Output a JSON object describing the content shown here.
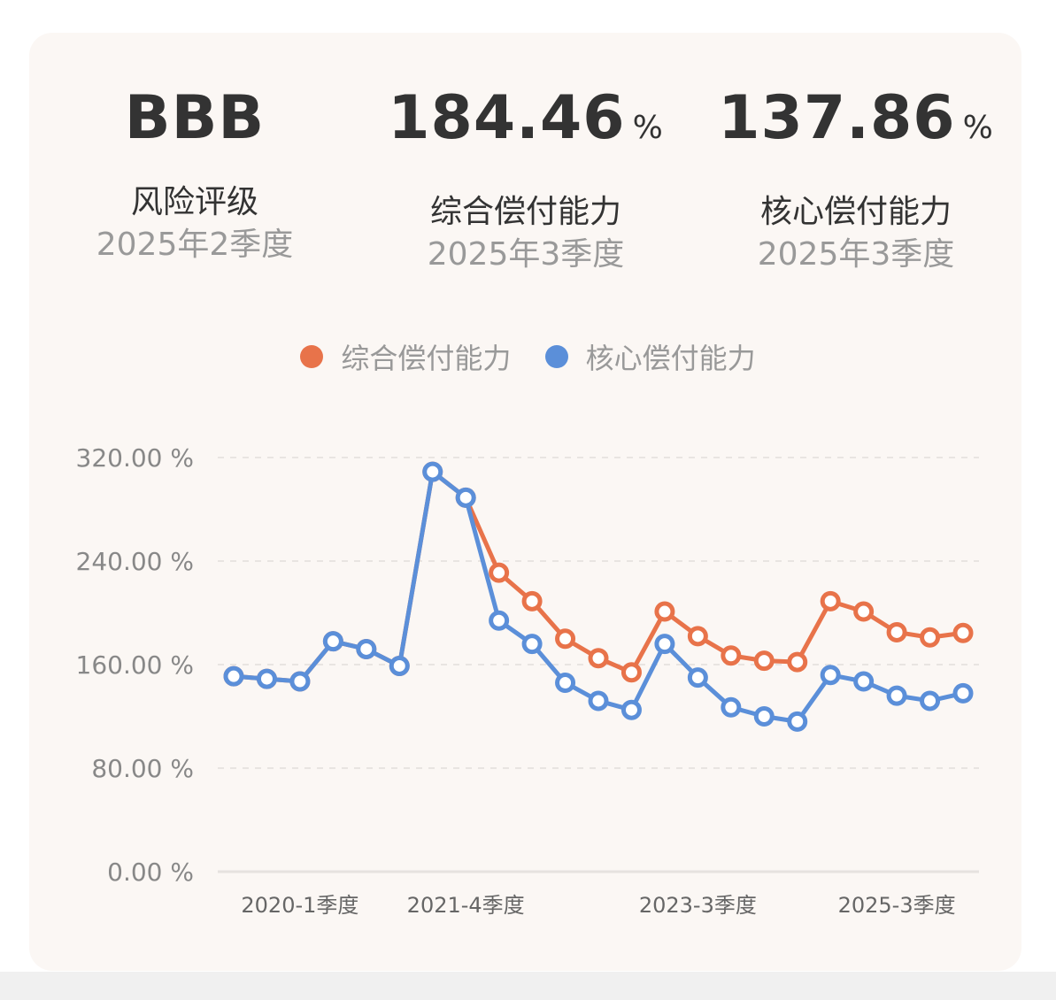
{
  "stats": [
    {
      "value": "BBB",
      "unit": "",
      "label": "风险评级",
      "period": "2025年2季度"
    },
    {
      "value": "184.46",
      "unit": "%",
      "label": "综合偿付能力",
      "period": "2025年3季度"
    },
    {
      "value": "137.86",
      "unit": "%",
      "label": "核心偿付能力",
      "period": "2025年3季度"
    }
  ],
  "legend": [
    {
      "label": "综合偿付能力",
      "color": "#e8734a"
    },
    {
      "label": "核心偿付能力",
      "color": "#5b8fd9"
    }
  ],
  "chart_data": {
    "type": "line",
    "title": "",
    "xlabel": "",
    "ylabel": "",
    "ylim": [
      0,
      320
    ],
    "y_ticks": [
      "0.00 %",
      "80.00 %",
      "160.00 %",
      "240.00 %",
      "320.00 %"
    ],
    "y_tick_values": [
      0,
      80,
      160,
      240,
      320
    ],
    "x_count": 23,
    "x_tick_labels": [
      {
        "index": 2,
        "label": "2020-1季度"
      },
      {
        "index": 7,
        "label": "2021-4季度"
      },
      {
        "index": 14,
        "label": "2023-3季度"
      },
      {
        "index": 20,
        "label": "2025-3季度"
      }
    ],
    "grid": "horizontal dashed",
    "legend_position": "top",
    "series": [
      {
        "name": "综合偿付能力",
        "color": "#e8734a",
        "values": [
          151,
          149,
          147,
          178,
          172,
          159,
          309,
          289,
          231,
          209,
          180,
          165,
          154,
          201,
          182,
          167,
          163,
          162,
          209,
          201,
          185,
          181,
          184.46
        ]
      },
      {
        "name": "核心偿付能力",
        "color": "#5b8fd9",
        "values": [
          151,
          149,
          147,
          178,
          172,
          159,
          309,
          289,
          194,
          176,
          146,
          132,
          125,
          176,
          150,
          127,
          120,
          116,
          152,
          147,
          136,
          132,
          137.86
        ]
      }
    ]
  }
}
